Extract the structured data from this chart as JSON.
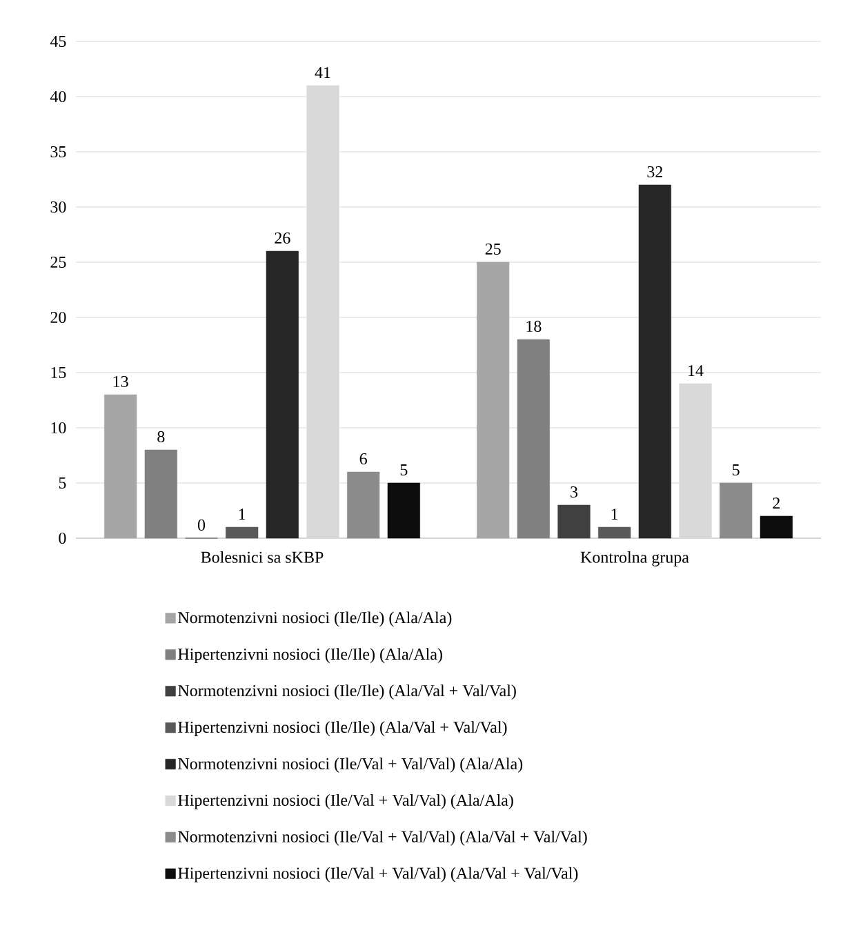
{
  "chart_data": {
    "type": "bar",
    "categories": [
      "Bolesnici sa sKBP",
      "Kontrolna grupa"
    ],
    "series": [
      {
        "name": "Normotenzivni nosioci (Ile/Ile) (Ala/Ala)",
        "color": "#a6a6a6",
        "values": [
          13,
          25
        ]
      },
      {
        "name": "Hipertenzivni nosioci (Ile/Ile) (Ala/Ala)",
        "color": "#808080",
        "values": [
          8,
          18
        ]
      },
      {
        "name": "Normotenzivni nosioci (Ile/Ile) (Ala/Val + Val/Val)",
        "color": "#404040",
        "values": [
          0,
          3
        ]
      },
      {
        "name": "Hipertenzivni nosioci (Ile/Ile) (Ala/Val + Val/Val)",
        "color": "#595959",
        "values": [
          1,
          1
        ]
      },
      {
        "name": "Normotenzivni nosioci (Ile/Val + Val/Val) (Ala/Ala)",
        "color": "#262626",
        "values": [
          26,
          32
        ]
      },
      {
        "name": "Hipertenzivni nosioci (Ile/Val + Val/Val) (Ala/Ala)",
        "color": "#d9d9d9",
        "values": [
          41,
          14
        ]
      },
      {
        "name": "Normotenzivni nosioci (Ile/Val + Val/Val) (Ala/Val + Val/Val)",
        "color": "#8c8c8c",
        "values": [
          6,
          5
        ]
      },
      {
        "name": "Hipertenzivni nosioci (Ile/Val + Val/Val) (Ala/Val + Val/Val)",
        "color": "#0d0d0d",
        "values": [
          5,
          2
        ]
      }
    ],
    "ylim": [
      0,
      45
    ],
    "yticks": [
      0,
      5,
      10,
      15,
      20,
      25,
      30,
      35,
      40,
      45
    ],
    "grid": "y",
    "legend": "bottom",
    "data_labels": true
  }
}
